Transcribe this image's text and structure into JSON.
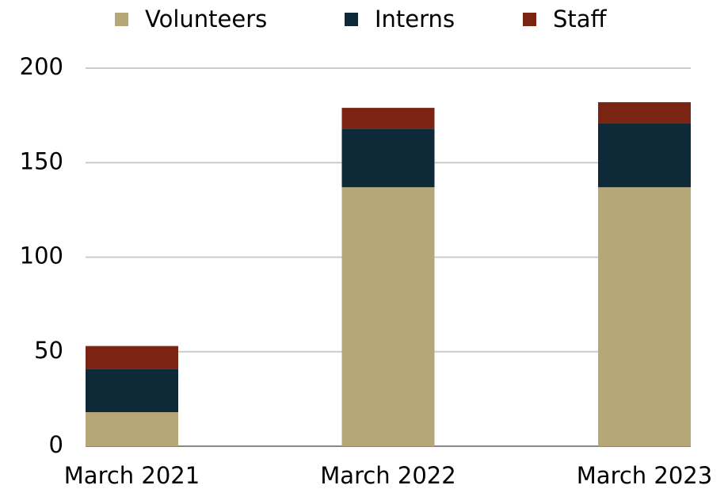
{
  "chart_data": {
    "type": "stacked-bar",
    "categories": [
      "March 2021",
      "March 2022",
      "March 2023"
    ],
    "series": [
      {
        "name": "Volunteers",
        "color": "#b5a777",
        "values": [
          18,
          137,
          137
        ]
      },
      {
        "name": "Interns",
        "color": "#0e2a38",
        "values": [
          23,
          31,
          34
        ]
      },
      {
        "name": "Staff",
        "color": "#7b2414",
        "values": [
          12,
          11,
          11
        ]
      }
    ],
    "ylim": [
      0,
      200
    ],
    "yticks": [
      0,
      50,
      100,
      150,
      200
    ],
    "grid": true,
    "legend": "top"
  }
}
